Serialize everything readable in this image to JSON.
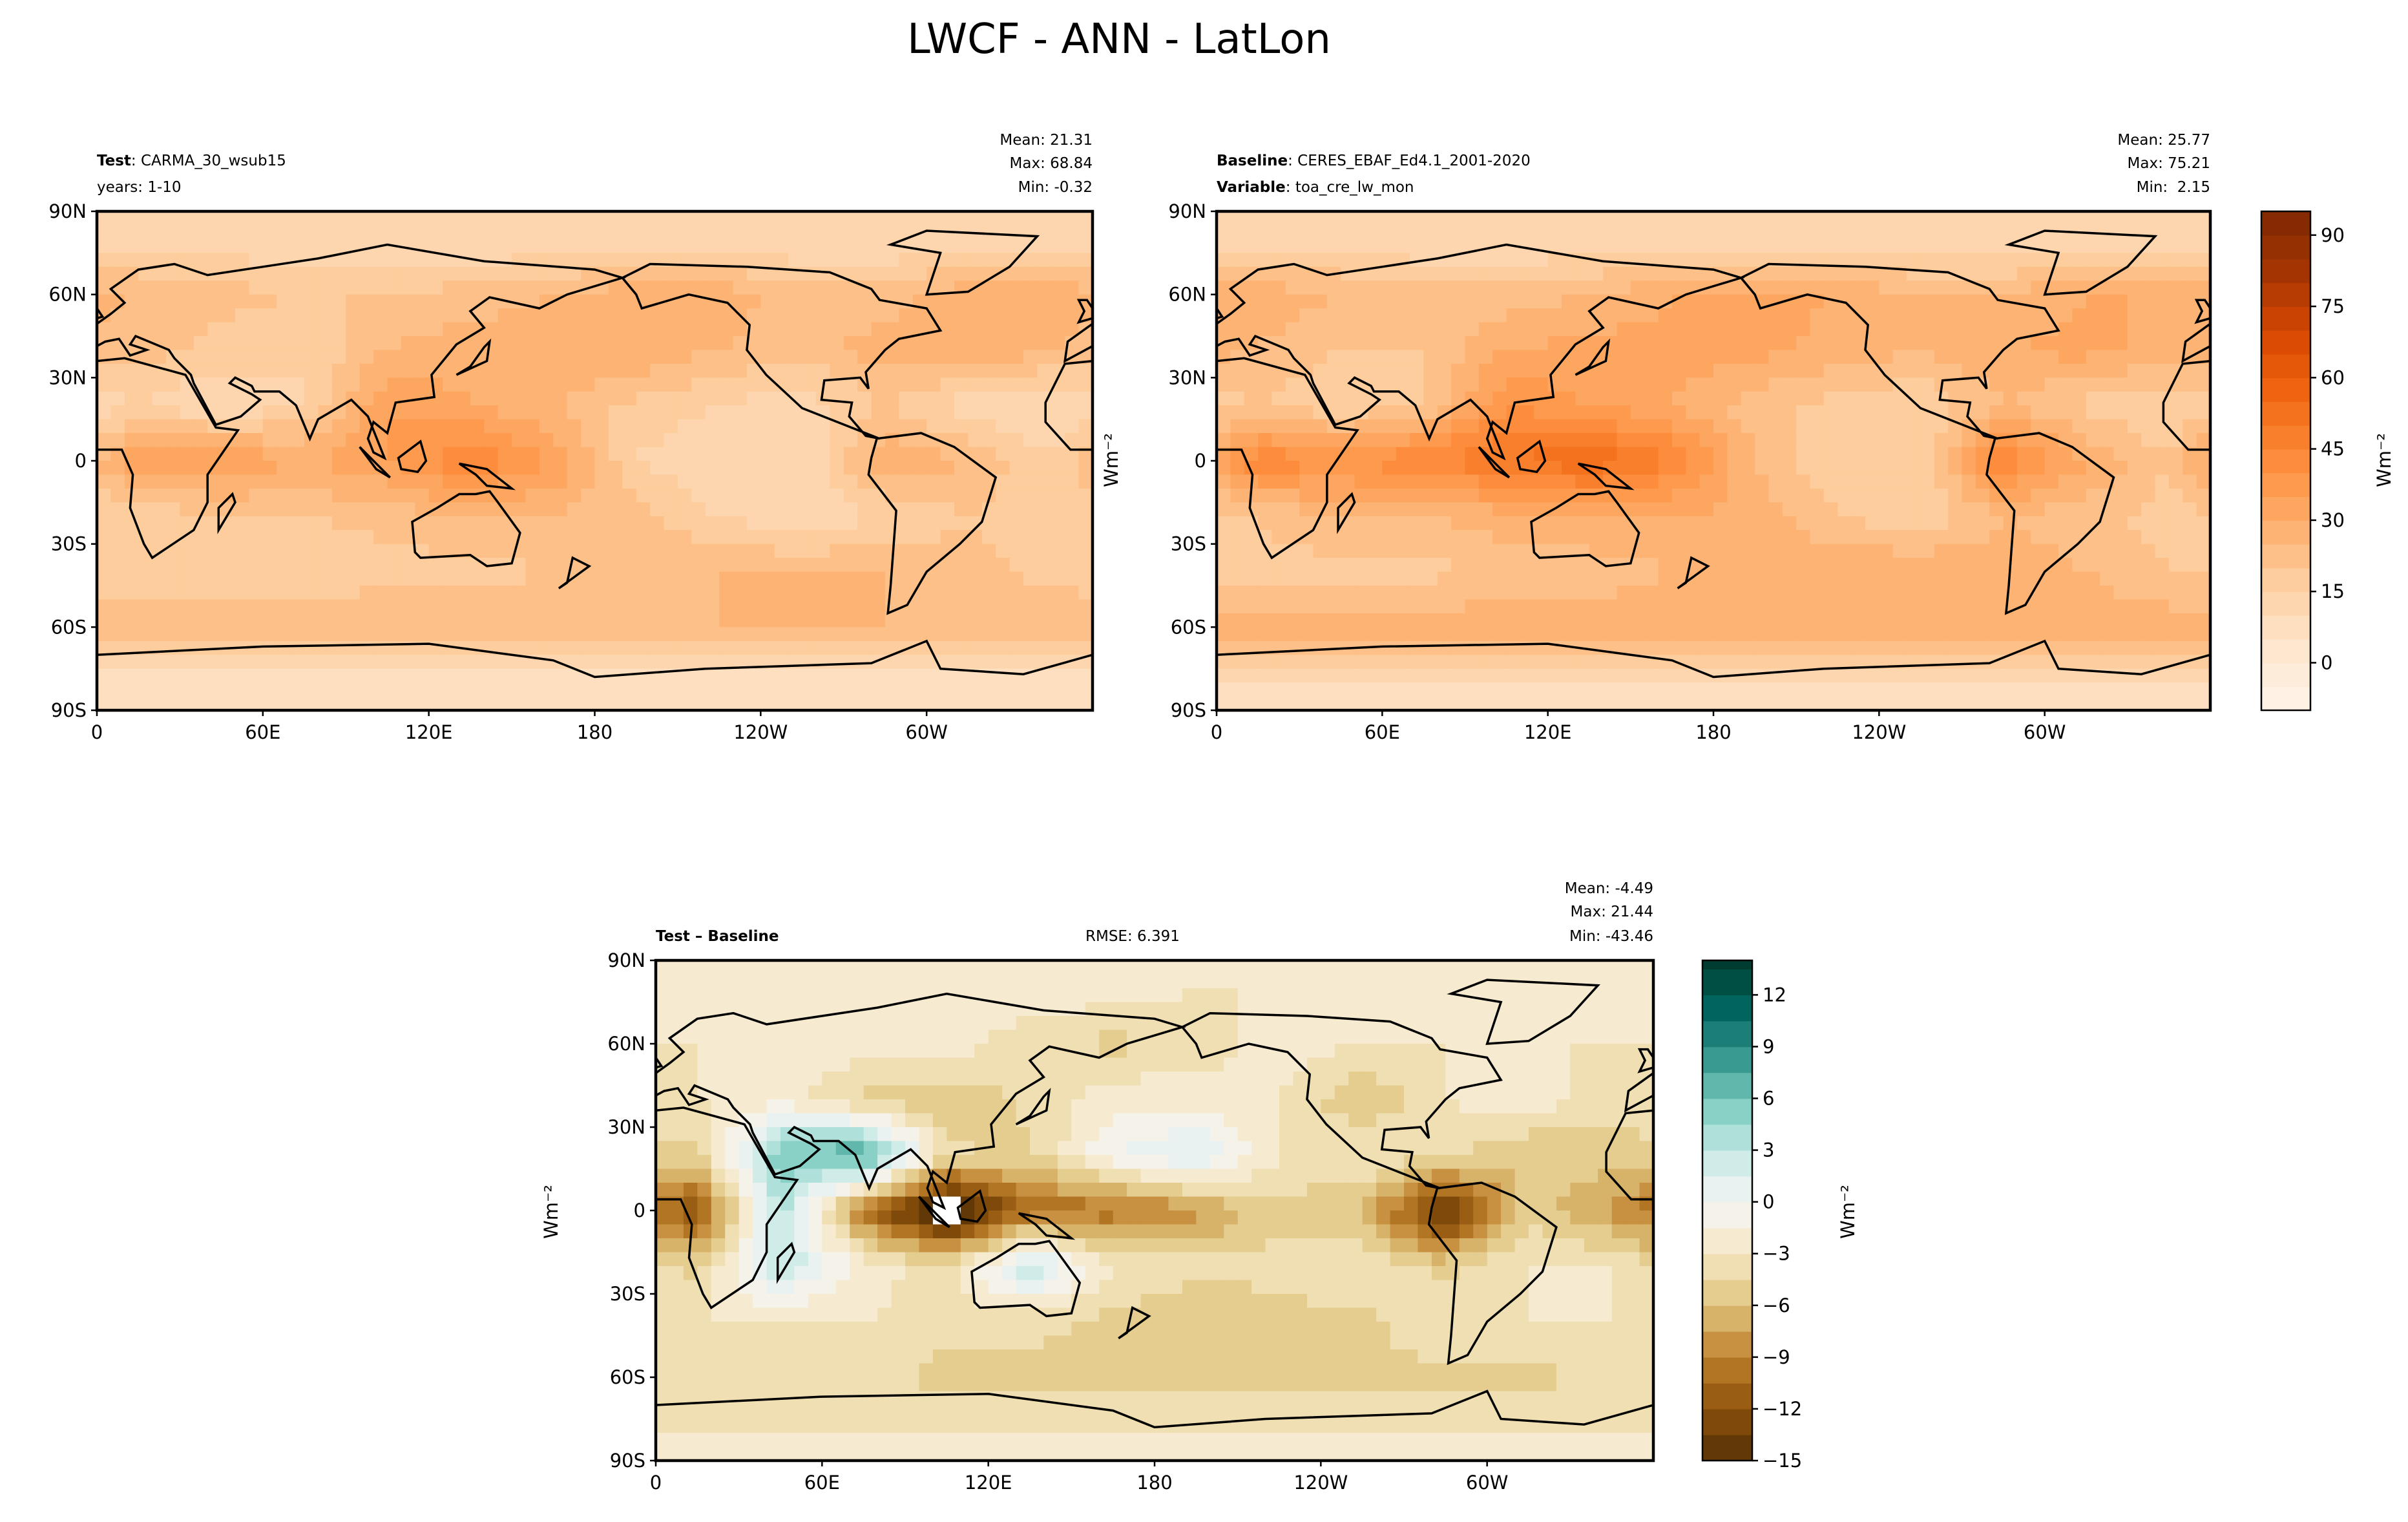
{
  "title": "LWCF - ANN - LatLon",
  "panels": {
    "test": {
      "label_bold": "Test",
      "label_rest": ": CARMA_30_wsub15",
      "line2": "years: 1-10",
      "mean": "Mean: 21.31",
      "max": "Max: 68.84",
      "min": "Min: -0.32"
    },
    "baseline": {
      "label_bold": "Baseline",
      "label_rest": ": CERES_EBAF_Ed4.1_2001-2020",
      "line2_bold": "Variable",
      "line2_rest": ": toa_cre_lw_mon",
      "mean": "Mean: 25.77",
      "max": "Max: 75.21",
      "min": "Min:  2.15"
    },
    "diff": {
      "label": "Test – Baseline",
      "rmse": "RMSE: 6.391",
      "mean": "Mean: -4.49",
      "max": "Max: 21.44",
      "min": "Min: -43.46"
    }
  },
  "units": "Wm⁻²",
  "chart_data": [
    {
      "type": "heatmap",
      "name": "test",
      "x_ticks": [
        "0",
        "60E",
        "120E",
        "180",
        "120W",
        "60W"
      ],
      "y_ticks": [
        "90N",
        "60N",
        "30N",
        "0",
        "30S",
        "60S",
        "90S"
      ],
      "xlim": [
        0,
        360
      ],
      "ylim": [
        -90,
        90
      ],
      "grid_lon_centers": [
        15,
        45,
        75,
        105,
        135,
        165,
        195,
        225,
        255,
        285,
        315,
        345
      ],
      "grid_lat_centers": [
        80,
        60,
        40,
        20,
        0,
        -20,
        -40,
        -60,
        -80
      ],
      "values": [
        [
          12,
          12,
          10,
          10,
          10,
          10,
          10,
          10,
          10,
          10,
          12,
          12
        ],
        [
          25,
          22,
          20,
          20,
          22,
          25,
          28,
          28,
          22,
          22,
          28,
          28
        ],
        [
          22,
          18,
          15,
          25,
          28,
          30,
          30,
          25,
          22,
          28,
          30,
          25
        ],
        [
          15,
          10,
          15,
          35,
          30,
          25,
          18,
          15,
          12,
          20,
          12,
          10
        ],
        [
          35,
          35,
          30,
          35,
          45,
          35,
          15,
          10,
          10,
          30,
          25,
          15
        ],
        [
          15,
          20,
          20,
          22,
          25,
          25,
          22,
          15,
          10,
          15,
          20,
          15
        ],
        [
          15,
          15,
          15,
          18,
          18,
          20,
          22,
          25,
          25,
          25,
          22,
          18
        ],
        [
          25,
          25,
          25,
          25,
          25,
          25,
          25,
          25,
          25,
          25,
          25,
          25
        ],
        [
          5,
          5,
          5,
          5,
          5,
          5,
          5,
          5,
          5,
          5,
          5,
          5
        ]
      ],
      "colormap": "Oranges",
      "vmin": -10,
      "vmax": 95
    },
    {
      "type": "heatmap",
      "name": "baseline",
      "x_ticks": [
        "0",
        "60E",
        "120E",
        "180",
        "120W",
        "60W"
      ],
      "y_ticks": [
        "90N",
        "60N",
        "30N",
        "0",
        "30S",
        "60S",
        "90S"
      ],
      "xlim": [
        0,
        360
      ],
      "ylim": [
        -90,
        90
      ],
      "grid_lon_centers": [
        15,
        45,
        75,
        105,
        135,
        165,
        195,
        225,
        255,
        285,
        315,
        345
      ],
      "grid_lat_centers": [
        80,
        60,
        40,
        20,
        0,
        -20,
        -40,
        -60,
        -80
      ],
      "values": [
        [
          12,
          12,
          10,
          10,
          10,
          10,
          10,
          10,
          10,
          10,
          12,
          12
        ],
        [
          28,
          25,
          22,
          22,
          25,
          30,
          32,
          30,
          25,
          25,
          30,
          30
        ],
        [
          25,
          20,
          20,
          30,
          32,
          32,
          32,
          28,
          25,
          30,
          32,
          28
        ],
        [
          20,
          15,
          20,
          40,
          35,
          30,
          22,
          18,
          15,
          25,
          18,
          15
        ],
        [
          45,
          40,
          45,
          50,
          55,
          45,
          25,
          15,
          15,
          45,
          30,
          20
        ],
        [
          20,
          25,
          25,
          28,
          30,
          30,
          28,
          20,
          15,
          25,
          22,
          18
        ],
        [
          18,
          18,
          18,
          22,
          22,
          25,
          28,
          30,
          30,
          28,
          25,
          20
        ],
        [
          28,
          28,
          28,
          28,
          28,
          28,
          28,
          28,
          28,
          28,
          28,
          28
        ],
        [
          8,
          8,
          8,
          8,
          8,
          8,
          8,
          8,
          8,
          8,
          8,
          8
        ]
      ],
      "colormap": "Oranges",
      "vmin": -10,
      "vmax": 95,
      "colorbar_ticks": [
        "90",
        "75",
        "60",
        "45",
        "30",
        "15",
        "0"
      ]
    },
    {
      "type": "heatmap",
      "name": "difference",
      "x_ticks": [
        "0",
        "60E",
        "120E",
        "180",
        "120W",
        "60W"
      ],
      "y_ticks": [
        "90N",
        "60N",
        "30N",
        "0",
        "30S",
        "60S",
        "90S"
      ],
      "xlim": [
        0,
        360
      ],
      "ylim": [
        -90,
        90
      ],
      "grid_lon_centers": [
        15,
        45,
        75,
        105,
        135,
        165,
        195,
        225,
        255,
        285,
        315,
        345
      ],
      "grid_lat_centers": [
        80,
        60,
        40,
        20,
        0,
        -20,
        -40,
        -60,
        -80
      ],
      "values": [
        [
          -2,
          -2,
          -2,
          -2,
          -2,
          -2,
          -3,
          -3,
          -3,
          -2,
          -2,
          -2
        ],
        [
          -3,
          -3,
          -2,
          -2,
          -4,
          -5,
          -4,
          -2,
          -3,
          -3,
          -3,
          -3
        ],
        [
          -3,
          -2,
          -5,
          -6,
          -4,
          -2,
          -2,
          -3,
          -6,
          -3,
          -2,
          -4
        ],
        [
          -5,
          6,
          8,
          -4,
          -5,
          0,
          2,
          -3,
          -3,
          -4,
          -6,
          -5
        ],
        [
          -12,
          4,
          -10,
          -18,
          -10,
          -10,
          -8,
          -5,
          -6,
          -15,
          -5,
          -8
        ],
        [
          -5,
          3,
          -2,
          -4,
          3,
          -3,
          -4,
          -4,
          -3,
          -5,
          -3,
          -3
        ],
        [
          -3,
          -3,
          -3,
          -4,
          -4,
          -5,
          -6,
          -5,
          -5,
          -3,
          -3,
          -3
        ],
        [
          -4,
          -4,
          -4,
          -5,
          -5,
          -5,
          -5,
          -5,
          -5,
          -5,
          -5,
          -4
        ],
        [
          -3,
          -3,
          -3,
          -3,
          -3,
          -3,
          -3,
          -3,
          -3,
          -3,
          -3,
          -3
        ]
      ],
      "colormap": "BrBG",
      "vmin": -15,
      "vmax": 14,
      "colorbar_ticks": [
        "12",
        "9",
        "6",
        "3",
        "0",
        "−3",
        "−6",
        "−9",
        "−12",
        "−15"
      ]
    }
  ]
}
